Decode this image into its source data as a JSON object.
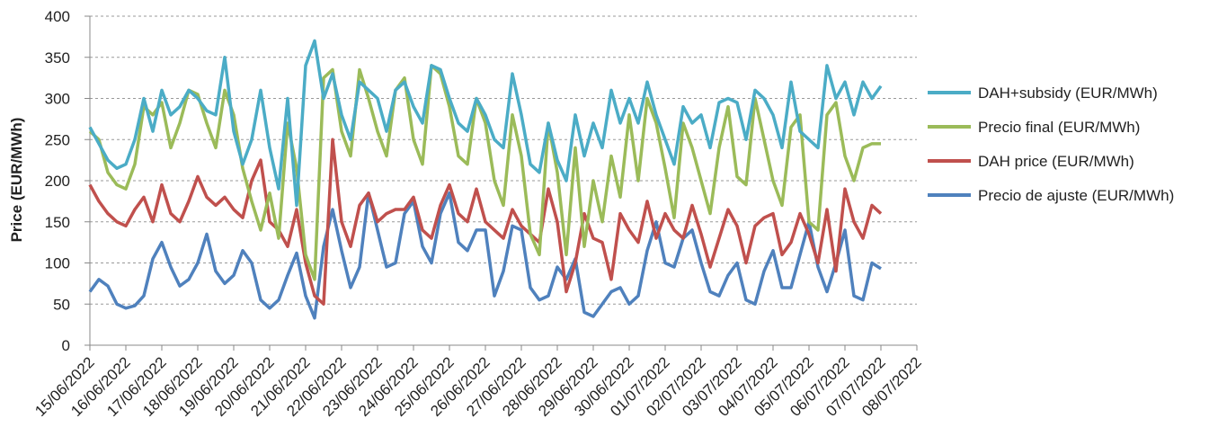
{
  "chart_data": {
    "type": "line",
    "y_label": "Price (EUR/MWh)",
    "x": [
      0,
      0.25,
      0.5,
      0.75,
      1,
      1.25,
      1.5,
      1.75,
      2,
      2.25,
      2.5,
      2.75,
      3,
      3.25,
      3.5,
      3.75,
      4,
      4.25,
      4.5,
      4.75,
      5,
      5.25,
      5.5,
      5.75,
      6,
      6.25,
      6.5,
      6.75,
      7,
      7.25,
      7.5,
      7.75,
      8,
      8.25,
      8.5,
      8.75,
      9,
      9.25,
      9.5,
      9.75,
      10,
      10.25,
      10.5,
      10.75,
      11,
      11.25,
      11.5,
      11.75,
      12,
      12.25,
      12.5,
      12.75,
      13,
      13.25,
      13.5,
      13.75,
      14,
      14.25,
      14.5,
      14.75,
      15,
      15.25,
      15.5,
      15.75,
      16,
      16.25,
      16.5,
      16.75,
      17,
      17.25,
      17.5,
      17.75,
      18,
      18.25,
      18.5,
      18.75,
      19,
      19.25,
      19.5,
      19.75,
      20,
      20.25,
      20.5,
      20.75,
      21,
      21.25,
      21.5,
      21.75,
      22
    ],
    "series": [
      {
        "name": "DAH+subsidy (EUR/MWh)",
        "color": "#4bacc6",
        "values": [
          265,
          245,
          225,
          215,
          220,
          250,
          300,
          260,
          310,
          280,
          290,
          310,
          300,
          285,
          280,
          350,
          260,
          220,
          250,
          310,
          240,
          190,
          300,
          170,
          340,
          370,
          300,
          330,
          280,
          250,
          320,
          310,
          300,
          260,
          310,
          320,
          290,
          270,
          340,
          335,
          300,
          270,
          260,
          300,
          280,
          250,
          240,
          330,
          280,
          220,
          210,
          270,
          225,
          200,
          280,
          230,
          270,
          240,
          310,
          270,
          300,
          270,
          320,
          280,
          250,
          220,
          290,
          270,
          280,
          240,
          295,
          300,
          295,
          250,
          310,
          300,
          280,
          240,
          320,
          260,
          250,
          240,
          340,
          300,
          320,
          280,
          320,
          300,
          315
        ]
      },
      {
        "name": "Precio final (EUR/MWh)",
        "color": "#9bbb59",
        "values": [
          260,
          250,
          210,
          195,
          190,
          220,
          290,
          280,
          295,
          240,
          270,
          310,
          305,
          270,
          240,
          310,
          280,
          215,
          175,
          140,
          185,
          130,
          270,
          215,
          110,
          80,
          325,
          335,
          260,
          230,
          335,
          300,
          260,
          230,
          310,
          325,
          250,
          220,
          340,
          330,
          290,
          230,
          220,
          300,
          270,
          200,
          170,
          280,
          230,
          135,
          110,
          270,
          210,
          110,
          240,
          120,
          200,
          150,
          230,
          180,
          280,
          200,
          300,
          270,
          215,
          155,
          270,
          240,
          200,
          160,
          240,
          290,
          205,
          195,
          300,
          250,
          200,
          170,
          265,
          280,
          150,
          140,
          280,
          295,
          230,
          200,
          240,
          245,
          245
        ]
      },
      {
        "name": "DAH price (EUR/MWh)",
        "color": "#c0504d",
        "values": [
          195,
          175,
          160,
          150,
          145,
          165,
          180,
          150,
          195,
          160,
          150,
          175,
          205,
          180,
          170,
          180,
          165,
          155,
          200,
          225,
          150,
          140,
          120,
          165,
          100,
          60,
          50,
          250,
          150,
          120,
          170,
          185,
          150,
          160,
          165,
          165,
          180,
          140,
          130,
          170,
          195,
          160,
          150,
          190,
          150,
          140,
          130,
          165,
          145,
          135,
          125,
          190,
          150,
          65,
          100,
          160,
          130,
          125,
          80,
          160,
          140,
          125,
          175,
          130,
          160,
          140,
          130,
          170,
          135,
          95,
          130,
          165,
          145,
          100,
          145,
          155,
          160,
          110,
          125,
          160,
          135,
          100,
          165,
          90,
          190,
          150,
          130,
          170,
          160
        ]
      },
      {
        "name": "Precio de ajuste (EUR/MWh)",
        "color": "#4f81bd",
        "values": [
          65,
          80,
          72,
          50,
          45,
          48,
          60,
          105,
          125,
          95,
          72,
          80,
          100,
          135,
          90,
          75,
          85,
          115,
          100,
          55,
          45,
          55,
          85,
          112,
          60,
          33,
          120,
          165,
          115,
          70,
          95,
          185,
          140,
          95,
          100,
          160,
          175,
          120,
          100,
          160,
          185,
          125,
          115,
          140,
          140,
          60,
          90,
          145,
          140,
          70,
          55,
          60,
          95,
          80,
          105,
          40,
          35,
          50,
          65,
          70,
          50,
          60,
          115,
          150,
          100,
          95,
          130,
          140,
          100,
          65,
          60,
          85,
          100,
          55,
          50,
          90,
          115,
          70,
          70,
          110,
          150,
          95,
          65,
          100,
          140,
          60,
          55,
          100,
          93
        ]
      }
    ],
    "xlim": [
      0,
      23
    ],
    "xticks": [
      {
        "value": 0,
        "label": "15/06/2022"
      },
      {
        "value": 1,
        "label": "16/06/2022"
      },
      {
        "value": 2,
        "label": "17/06/2022"
      },
      {
        "value": 3,
        "label": "18/06/2022"
      },
      {
        "value": 4,
        "label": "19/06/2022"
      },
      {
        "value": 5,
        "label": "20/06/2022"
      },
      {
        "value": 6,
        "label": "21/06/2022"
      },
      {
        "value": 7,
        "label": "22/06/2022"
      },
      {
        "value": 8,
        "label": "23/06/2022"
      },
      {
        "value": 9,
        "label": "24/06/2022"
      },
      {
        "value": 10,
        "label": "25/06/2022"
      },
      {
        "value": 11,
        "label": "26/06/2022"
      },
      {
        "value": 12,
        "label": "27/06/2022"
      },
      {
        "value": 13,
        "label": "28/06/2022"
      },
      {
        "value": 14,
        "label": "29/06/2022"
      },
      {
        "value": 15,
        "label": "30/06/2022"
      },
      {
        "value": 16,
        "label": "01/07/2022"
      },
      {
        "value": 17,
        "label": "02/07/2022"
      },
      {
        "value": 18,
        "label": "03/07/2022"
      },
      {
        "value": 19,
        "label": "04/07/2022"
      },
      {
        "value": 20,
        "label": "05/07/2022"
      },
      {
        "value": 21,
        "label": "06/07/2022"
      },
      {
        "value": 22,
        "label": "07/07/2022"
      },
      {
        "value": 23,
        "label": "08/07/2022"
      }
    ],
    "ylim": [
      0,
      400
    ],
    "yticks": [
      0,
      50,
      100,
      150,
      200,
      250,
      300,
      350,
      400
    ],
    "grid": true,
    "legend": "right"
  }
}
